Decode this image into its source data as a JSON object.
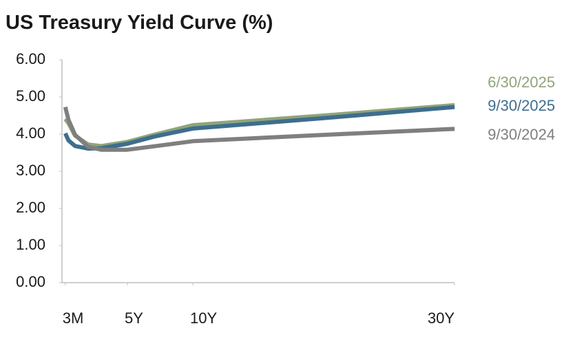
{
  "chart_data": {
    "type": "line",
    "title": "US Treasury Yield Curve (%)",
    "x": [
      0.25,
      0.5,
      1,
      2,
      3,
      5,
      7,
      10,
      20,
      30
    ],
    "xlim": [
      0,
      30
    ],
    "xticks": [
      {
        "value": 0.25,
        "label": "3M"
      },
      {
        "value": 5,
        "label": "5Y"
      },
      {
        "value": 10,
        "label": "10Y"
      },
      {
        "value": 30,
        "label": "30Y"
      }
    ],
    "ylim": [
      0,
      6
    ],
    "yticks": [
      {
        "value": 0,
        "label": "0.00"
      },
      {
        "value": 1,
        "label": "1.00"
      },
      {
        "value": 2,
        "label": "2.00"
      },
      {
        "value": 3,
        "label": "3.00"
      },
      {
        "value": 4,
        "label": "4.00"
      },
      {
        "value": 5,
        "label": "5.00"
      },
      {
        "value": 6,
        "label": "6.00"
      }
    ],
    "grid": false,
    "series": [
      {
        "name": "6/30/2025",
        "color": "#8fa57a",
        "values": [
          4.41,
          4.29,
          3.96,
          3.72,
          3.68,
          3.79,
          3.98,
          4.24,
          4.5,
          4.78
        ]
      },
      {
        "name": "9/30/2025",
        "color": "#3e6e8e",
        "values": [
          4.02,
          3.83,
          3.68,
          3.61,
          3.62,
          3.74,
          3.93,
          4.15,
          4.43,
          4.73
        ]
      },
      {
        "name": "9/30/2024",
        "color": "#7f7f7f",
        "values": [
          4.73,
          4.38,
          3.98,
          3.66,
          3.58,
          3.58,
          3.67,
          3.81,
          3.98,
          4.14
        ]
      }
    ]
  }
}
